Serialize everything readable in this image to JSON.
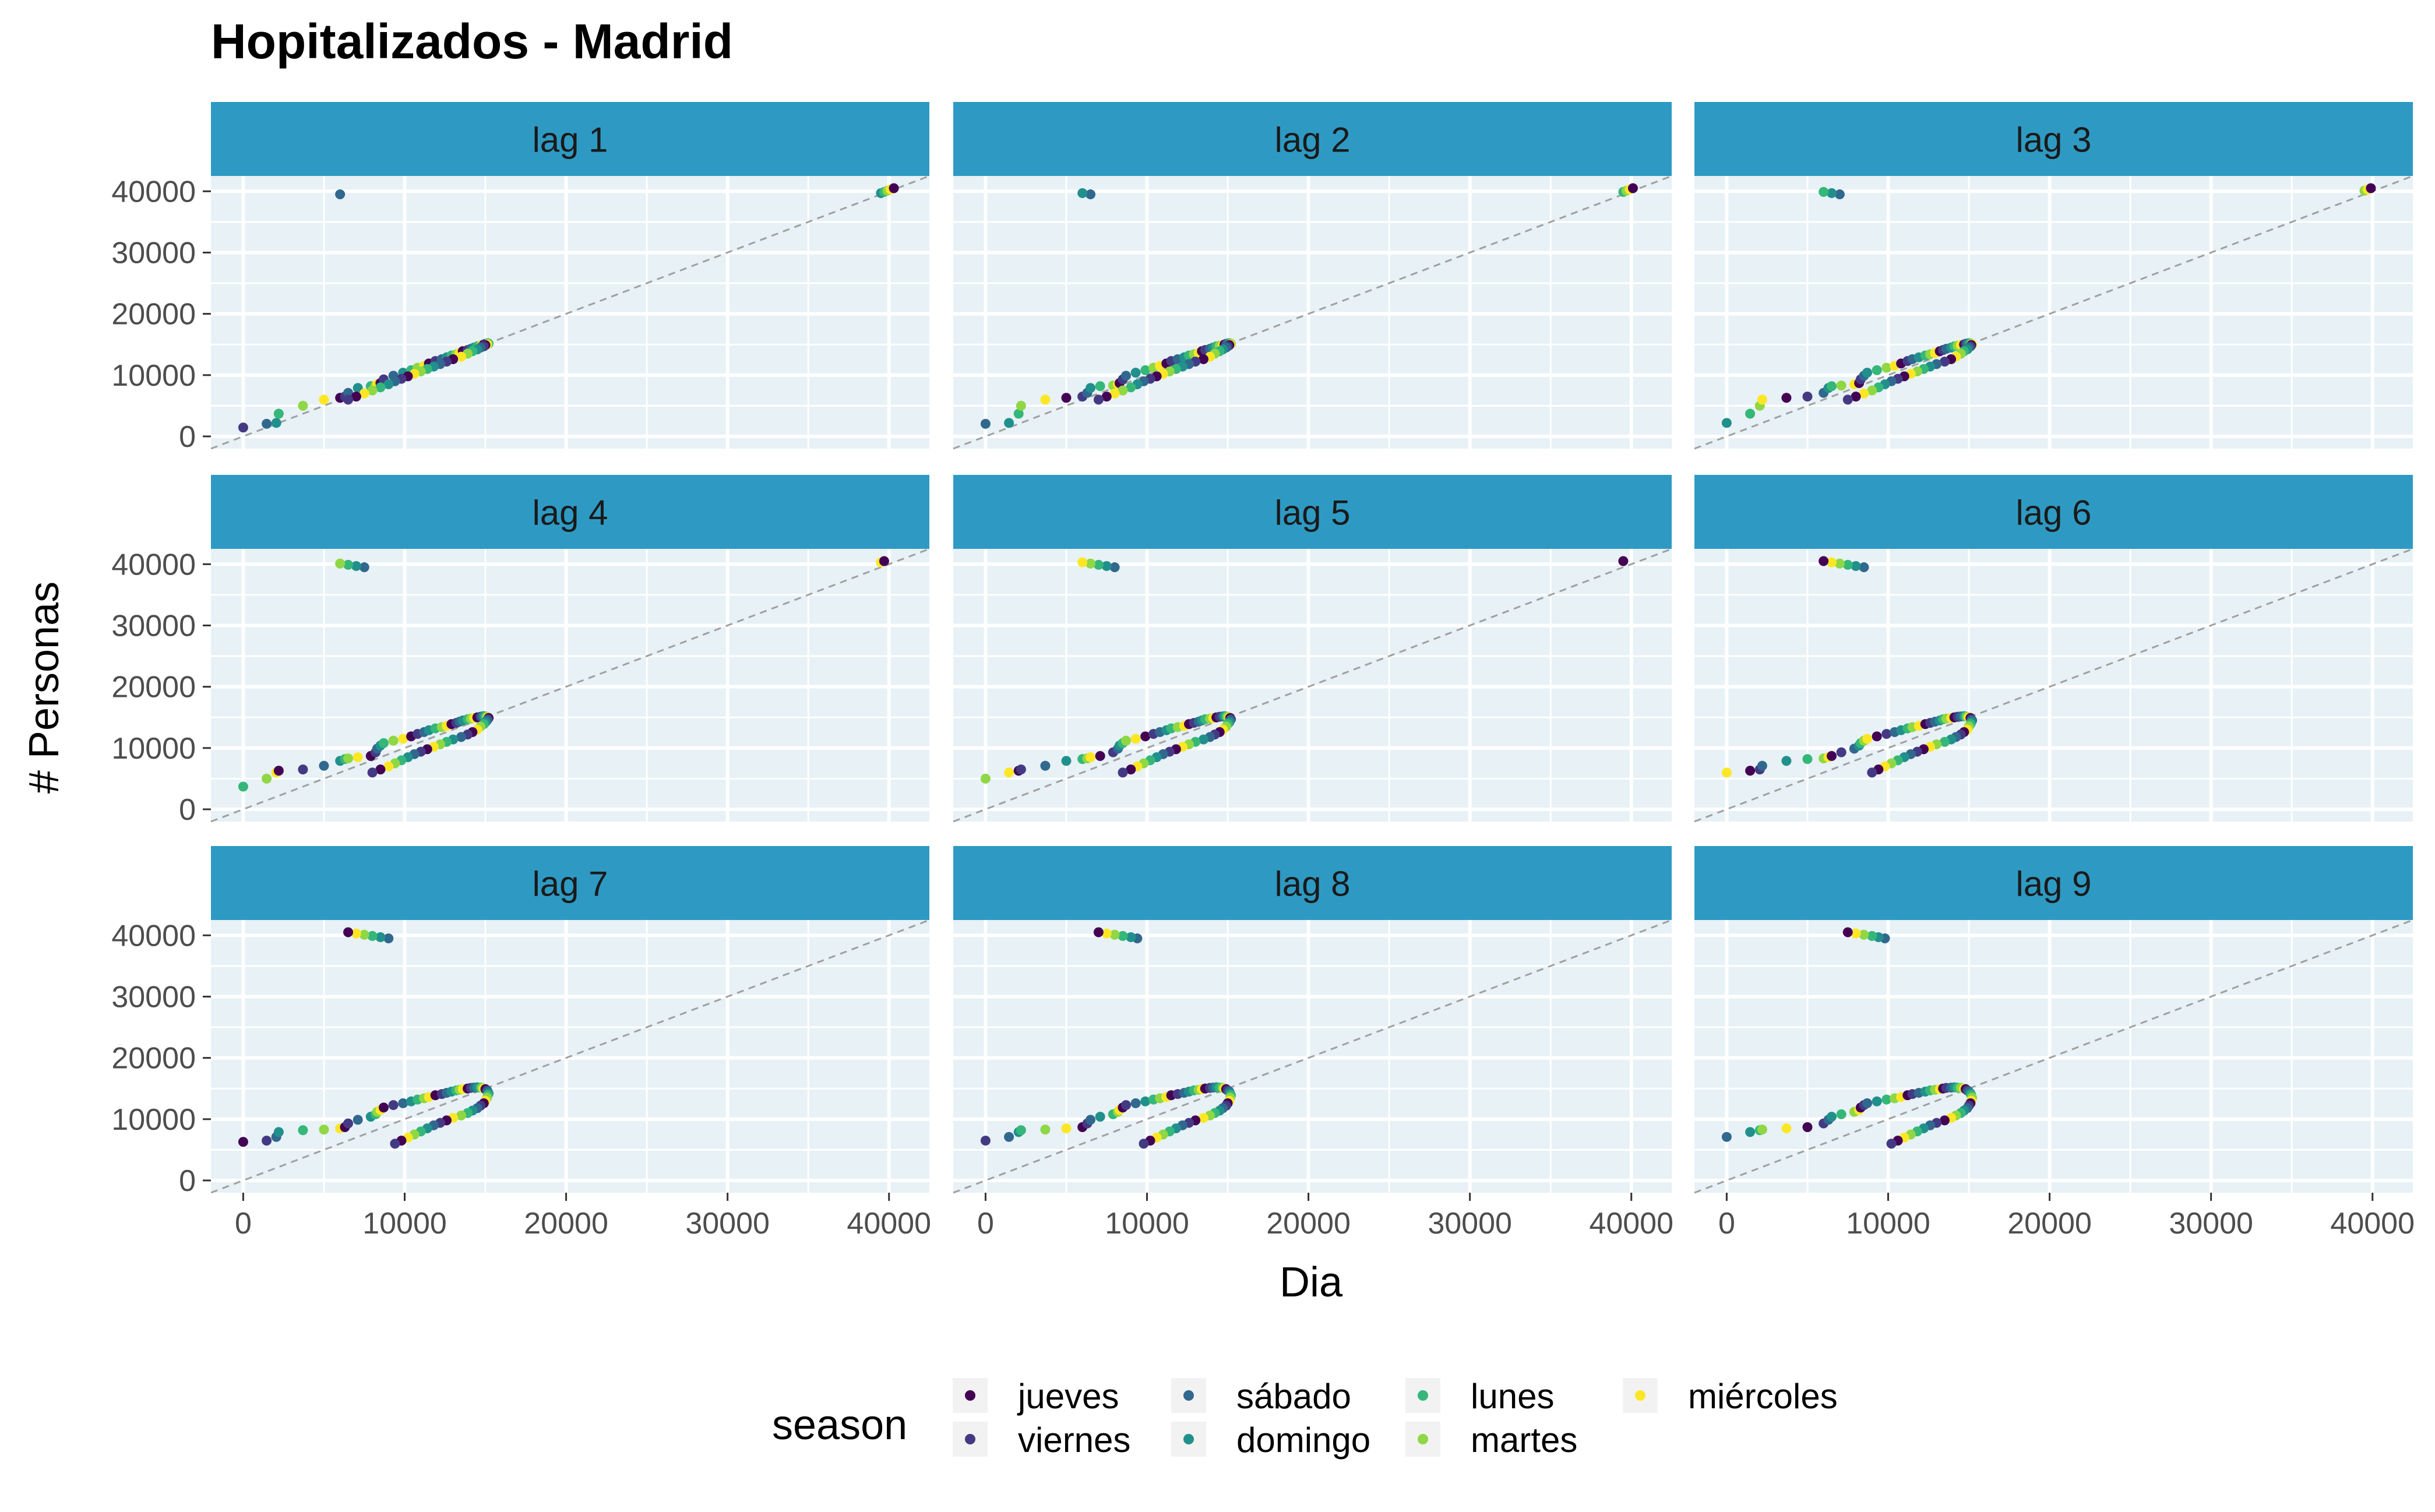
{
  "chart_data": {
    "type": "scatter",
    "title": "Hopitalizados - Madrid",
    "xlabel": "Dia",
    "ylabel": "# Personas",
    "xlim": [
      -2000,
      42500
    ],
    "ylim": [
      -2000,
      42500
    ],
    "x_ticks": [
      0,
      10000,
      20000,
      30000,
      40000
    ],
    "y_ticks": [
      0,
      10000,
      20000,
      30000,
      40000
    ],
    "reference_line": "y = x",
    "grid": true,
    "legend": {
      "title": "season",
      "position": "bottom",
      "entries": [
        {
          "name": "jueves",
          "color": "#440154"
        },
        {
          "name": "viernes",
          "color": "#443A83"
        },
        {
          "name": "sábado",
          "color": "#31688E"
        },
        {
          "name": "domingo",
          "color": "#21908C"
        },
        {
          "name": "lunes",
          "color": "#35B779"
        },
        {
          "name": "martes",
          "color": "#8FD744"
        },
        {
          "name": "miércoles",
          "color": "#FDE725"
        }
      ]
    },
    "facet_labels": [
      "lag 1",
      "lag 2",
      "lag 3",
      "lag 4",
      "lag 5",
      "lag 6",
      "lag 7",
      "lag 8",
      "lag 9"
    ],
    "season_order": [
      "jueves",
      "viernes",
      "sábado",
      "domingo",
      "lunes",
      "martes",
      "miércoles"
    ],
    "series_values": [
      0,
      1450,
      2050,
      2200,
      3700,
      5000,
      6000,
      6300,
      6500,
      7100,
      7900,
      8200,
      8300,
      8500,
      8700,
      9300,
      9900,
      10400,
      10800,
      11200,
      11500,
      11900,
      12300,
      12600,
      12900,
      13200,
      13400,
      13600,
      13900,
      14100,
      14300,
      14500,
      14700,
      14800,
      14900,
      15000,
      15100,
      15150,
      15200,
      15150,
      15100,
      15000,
      14900,
      14700,
      14500,
      14200,
      13900,
      13500,
      13000,
      12600,
      12200,
      11800,
      11400,
      11000,
      10600,
      10200,
      9800,
      9400,
      9000,
      8500,
      8000,
      7500,
      7000,
      6500,
      6000,
      39500,
      39700,
      39900,
      40100,
      40300,
      40500
    ]
  }
}
